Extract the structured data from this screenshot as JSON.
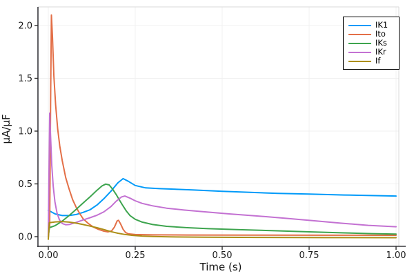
{
  "chart_data": {
    "type": "line",
    "title": "",
    "xlabel": "Time (s)",
    "ylabel": "μA/μF",
    "xlim": [
      -0.03,
      1.01
    ],
    "ylim": [
      -0.09,
      2.18
    ],
    "grid": true,
    "legend_position": "top-right",
    "x_ticks": {
      "values": [
        0,
        0.25,
        0.5,
        0.75,
        1.0
      ],
      "labels": [
        "0.00",
        "0.25",
        "0.50",
        "0.75",
        "1.00"
      ]
    },
    "y_ticks": {
      "values": [
        0,
        0.5,
        1.0,
        1.5,
        2.0
      ],
      "labels": [
        "0.0",
        "0.5",
        "1.0",
        "1.5",
        "2.0"
      ]
    },
    "series": [
      {
        "name": "IK1",
        "color": "#009af9",
        "points": [
          [
            0,
            0.25
          ],
          [
            0.02,
            0.215
          ],
          [
            0.04,
            0.2
          ],
          [
            0.06,
            0.2
          ],
          [
            0.08,
            0.21
          ],
          [
            0.1,
            0.23
          ],
          [
            0.12,
            0.255
          ],
          [
            0.14,
            0.3
          ],
          [
            0.16,
            0.36
          ],
          [
            0.18,
            0.43
          ],
          [
            0.2,
            0.51
          ],
          [
            0.215,
            0.55
          ],
          [
            0.23,
            0.525
          ],
          [
            0.25,
            0.485
          ],
          [
            0.28,
            0.462
          ],
          [
            0.32,
            0.455
          ],
          [
            0.36,
            0.45
          ],
          [
            0.42,
            0.442
          ],
          [
            0.5,
            0.43
          ],
          [
            0.58,
            0.42
          ],
          [
            0.66,
            0.41
          ],
          [
            0.75,
            0.403
          ],
          [
            0.85,
            0.395
          ],
          [
            1.0,
            0.385
          ]
        ]
      },
      {
        "name": "Ito",
        "color": "#e36f47",
        "points": [
          [
            0,
            0.02
          ],
          [
            0.004,
            0.1
          ],
          [
            0.007,
            1.4
          ],
          [
            0.009,
            2.1
          ],
          [
            0.012,
            1.9
          ],
          [
            0.016,
            1.52
          ],
          [
            0.021,
            1.25
          ],
          [
            0.027,
            1.02
          ],
          [
            0.033,
            0.86
          ],
          [
            0.04,
            0.72
          ],
          [
            0.05,
            0.56
          ],
          [
            0.06,
            0.45
          ],
          [
            0.07,
            0.35
          ],
          [
            0.08,
            0.28
          ],
          [
            0.09,
            0.22
          ],
          [
            0.1,
            0.17
          ],
          [
            0.115,
            0.125
          ],
          [
            0.13,
            0.09
          ],
          [
            0.145,
            0.068
          ],
          [
            0.16,
            0.052
          ],
          [
            0.172,
            0.045
          ],
          [
            0.182,
            0.055
          ],
          [
            0.19,
            0.09
          ],
          [
            0.198,
            0.15
          ],
          [
            0.202,
            0.155
          ],
          [
            0.208,
            0.12
          ],
          [
            0.215,
            0.07
          ],
          [
            0.222,
            0.04
          ],
          [
            0.23,
            0.027
          ],
          [
            0.25,
            0.02
          ],
          [
            0.3,
            0.017
          ],
          [
            0.4,
            0.016
          ],
          [
            0.6,
            0.015
          ],
          [
            0.8,
            0.014
          ],
          [
            1.0,
            0.013
          ]
        ]
      },
      {
        "name": "IKs",
        "color": "#3da44e",
        "points": [
          [
            0,
            0.0
          ],
          [
            0.003,
            0.085
          ],
          [
            0.02,
            0.105
          ],
          [
            0.04,
            0.148
          ],
          [
            0.06,
            0.2
          ],
          [
            0.08,
            0.258
          ],
          [
            0.1,
            0.318
          ],
          [
            0.12,
            0.378
          ],
          [
            0.14,
            0.44
          ],
          [
            0.155,
            0.482
          ],
          [
            0.165,
            0.498
          ],
          [
            0.175,
            0.49
          ],
          [
            0.185,
            0.45
          ],
          [
            0.195,
            0.4
          ],
          [
            0.205,
            0.345
          ],
          [
            0.215,
            0.29
          ],
          [
            0.225,
            0.24
          ],
          [
            0.235,
            0.2
          ],
          [
            0.25,
            0.165
          ],
          [
            0.27,
            0.138
          ],
          [
            0.3,
            0.115
          ],
          [
            0.34,
            0.098
          ],
          [
            0.4,
            0.085
          ],
          [
            0.46,
            0.076
          ],
          [
            0.55,
            0.066
          ],
          [
            0.65,
            0.056
          ],
          [
            0.75,
            0.046
          ],
          [
            0.85,
            0.036
          ],
          [
            0.93,
            0.029
          ],
          [
            1.0,
            0.025
          ]
        ]
      },
      {
        "name": "IKr",
        "color": "#c371d2",
        "points": [
          [
            0,
            0.0
          ],
          [
            0.002,
            0.6
          ],
          [
            0.004,
            1.17
          ],
          [
            0.007,
            0.92
          ],
          [
            0.01,
            0.68
          ],
          [
            0.014,
            0.48
          ],
          [
            0.019,
            0.33
          ],
          [
            0.025,
            0.225
          ],
          [
            0.032,
            0.16
          ],
          [
            0.04,
            0.125
          ],
          [
            0.05,
            0.113
          ],
          [
            0.06,
            0.115
          ],
          [
            0.08,
            0.135
          ],
          [
            0.1,
            0.158
          ],
          [
            0.12,
            0.18
          ],
          [
            0.14,
            0.203
          ],
          [
            0.16,
            0.235
          ],
          [
            0.18,
            0.285
          ],
          [
            0.195,
            0.335
          ],
          [
            0.21,
            0.375
          ],
          [
            0.22,
            0.385
          ],
          [
            0.235,
            0.365
          ],
          [
            0.25,
            0.34
          ],
          [
            0.27,
            0.315
          ],
          [
            0.3,
            0.292
          ],
          [
            0.34,
            0.27
          ],
          [
            0.39,
            0.252
          ],
          [
            0.45,
            0.235
          ],
          [
            0.52,
            0.216
          ],
          [
            0.6,
            0.196
          ],
          [
            0.68,
            0.175
          ],
          [
            0.76,
            0.152
          ],
          [
            0.84,
            0.128
          ],
          [
            0.92,
            0.107
          ],
          [
            1.0,
            0.094
          ]
        ]
      },
      {
        "name": "If",
        "color": "#ac8e17",
        "points": [
          [
            0,
            -0.025
          ],
          [
            0.003,
            0.132
          ],
          [
            0.02,
            0.14
          ],
          [
            0.04,
            0.143
          ],
          [
            0.06,
            0.138
          ],
          [
            0.08,
            0.128
          ],
          [
            0.1,
            0.115
          ],
          [
            0.12,
            0.1
          ],
          [
            0.14,
            0.085
          ],
          [
            0.16,
            0.067
          ],
          [
            0.18,
            0.048
          ],
          [
            0.2,
            0.033
          ],
          [
            0.22,
            0.021
          ],
          [
            0.24,
            0.013
          ],
          [
            0.27,
            0.006
          ],
          [
            0.3,
            0.002
          ],
          [
            0.35,
            -0.002
          ],
          [
            0.45,
            -0.005
          ],
          [
            0.6,
            -0.007
          ],
          [
            0.8,
            -0.009
          ],
          [
            1.0,
            -0.01
          ]
        ]
      }
    ]
  }
}
